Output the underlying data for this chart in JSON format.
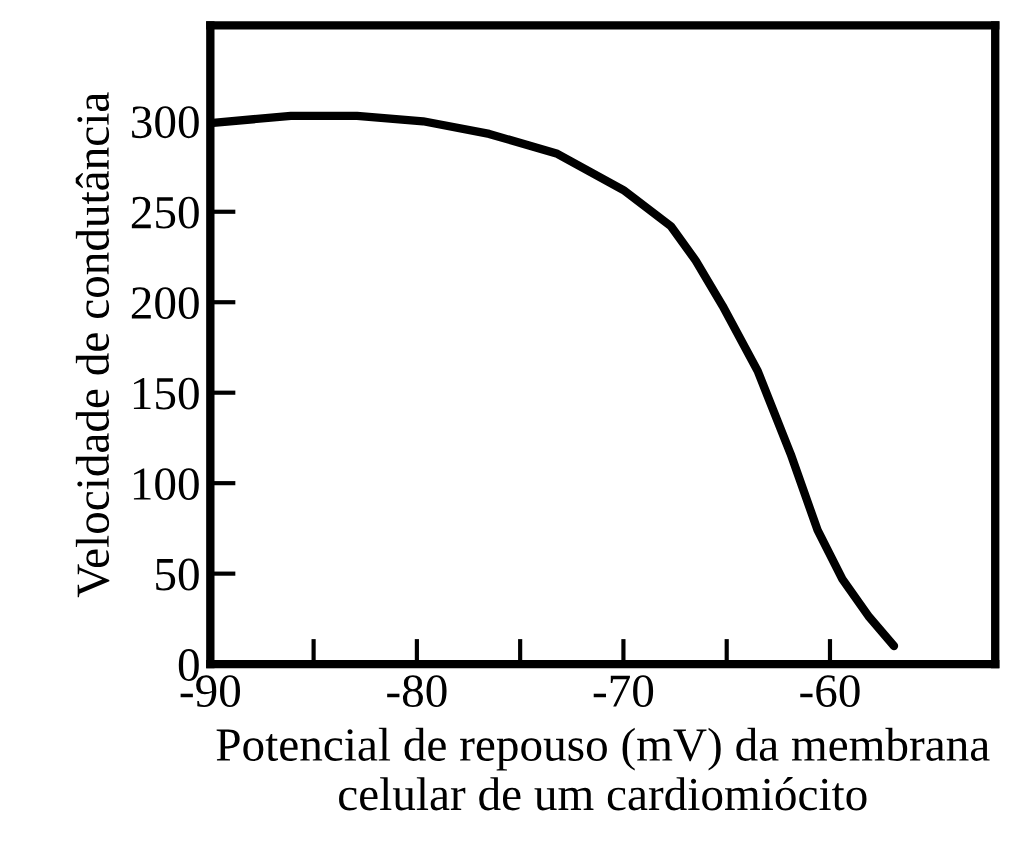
{
  "chart_data": {
    "type": "line",
    "xlabel": "Potencial de repouso (mV) da membrana\ncelular de um cardiomiócito",
    "ylabel": "Velocidade de condutância",
    "x": [
      -90,
      -86.1,
      -82.9,
      -79.7,
      -76.5,
      -73.2,
      -70,
      -67.7,
      -66.5,
      -65.2,
      -63.5,
      -61.9,
      -60.6,
      -59.4,
      -58.1,
      -56.9
    ],
    "series": [
      {
        "color": "#000000",
        "values": [
          299,
          303,
          303,
          300,
          293,
          282,
          262,
          242,
          223,
          198,
          162,
          116,
          74,
          47,
          26,
          10
        ]
      }
    ],
    "xlim": [
      -90,
      -52
    ],
    "ylim": [
      0,
      353
    ],
    "xticks": [
      -90,
      {
        "value": -85,
        "label": null
      },
      -80,
      {
        "value": -75,
        "label": null
      },
      -70,
      {
        "value": -65,
        "label": null
      },
      -60
    ],
    "yticks": [
      0,
      50,
      100,
      150,
      200,
      250,
      300
    ],
    "grid": false,
    "legend": false,
    "marker": "none",
    "line_style": "solid"
  }
}
